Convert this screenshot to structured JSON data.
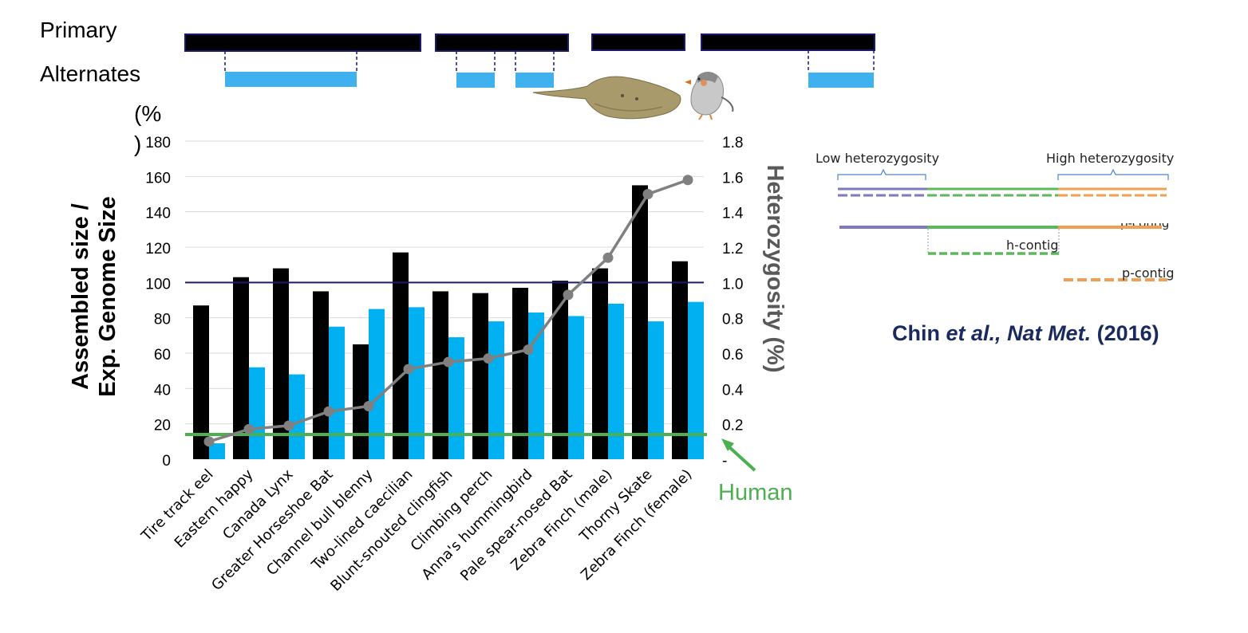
{
  "top_labels": {
    "primary": "Primary",
    "alternates": "Alternates"
  },
  "colors": {
    "primary_bar": "#000000",
    "alternate_bar": "#00b0f0",
    "heterozygosity_line": "#808080",
    "human_line": "#4caf50",
    "reference_line": "#1a1a70",
    "citation": "#1a2a5e",
    "purple": "#7b7bbd",
    "green": "#5cb85c",
    "orange": "#f0a050"
  },
  "chart_data": {
    "type": "bar",
    "categories": [
      "Tire track eel",
      "Eastern happy",
      "Canada Lynx",
      "Greater Horseshoe Bat",
      "Channel bull blenny",
      "Two-lined caecilian",
      "Blunt-snouted clingfish",
      "Climbing perch",
      "Anna's hummingbird",
      "Pale spear-nosed Bat",
      "Zebra Finch (male)",
      "Thorny Skate",
      "Zebra Finch (female)"
    ],
    "series": [
      {
        "name": "Primary",
        "type": "bar",
        "axis": "left",
        "values": [
          87,
          103,
          108,
          95,
          65,
          117,
          95,
          94,
          97,
          101,
          108,
          155,
          112
        ]
      },
      {
        "name": "Alternates",
        "type": "bar",
        "axis": "left",
        "values": [
          9,
          52,
          48,
          75,
          85,
          86,
          69,
          78,
          83,
          81,
          88,
          78,
          89
        ]
      },
      {
        "name": "",
        "type": "line",
        "axis": "right",
        "values": [
          0.1,
          0.17,
          0.19,
          0.27,
          0.3,
          0.51,
          0.55,
          0.57,
          0.62,
          0.93,
          1.14,
          1.5,
          1.58
        ]
      }
    ],
    "ylabel": "Assembled size / Exp. Genome Size",
    "ylabel_line1": "Assembled size /",
    "ylabel_line2": "Exp. Genome Size",
    "ylabel_unit_top": "(%",
    "ylabel_unit_bottom": ")",
    "y2label": "Heterozygosity (%)",
    "ylim": [
      0,
      180
    ],
    "y2lim": [
      0,
      1.8
    ],
    "yticks": [
      "0",
      "20",
      "40",
      "60",
      "80",
      "100",
      "120",
      "140",
      "160",
      "180"
    ],
    "y2ticks": [
      "-",
      "0.2",
      "0.4",
      "0.6",
      "0.8",
      "1.0",
      "1.2",
      "1.4",
      "1.6",
      "1.8"
    ],
    "reference_line": 100,
    "human_line": 14,
    "human_label": "Human",
    "grid": true
  },
  "citation": {
    "author": "Chin",
    "etal": "et al.,",
    "journal": "Nat Met.",
    "year": "(2016)"
  },
  "diagram": {
    "low_label": "Low heterozygosity",
    "high_label": "High heterozygosity",
    "h_contig": "h-contig",
    "p_contig": "p-contig",
    "p_contig_clipped": "p-contig"
  }
}
